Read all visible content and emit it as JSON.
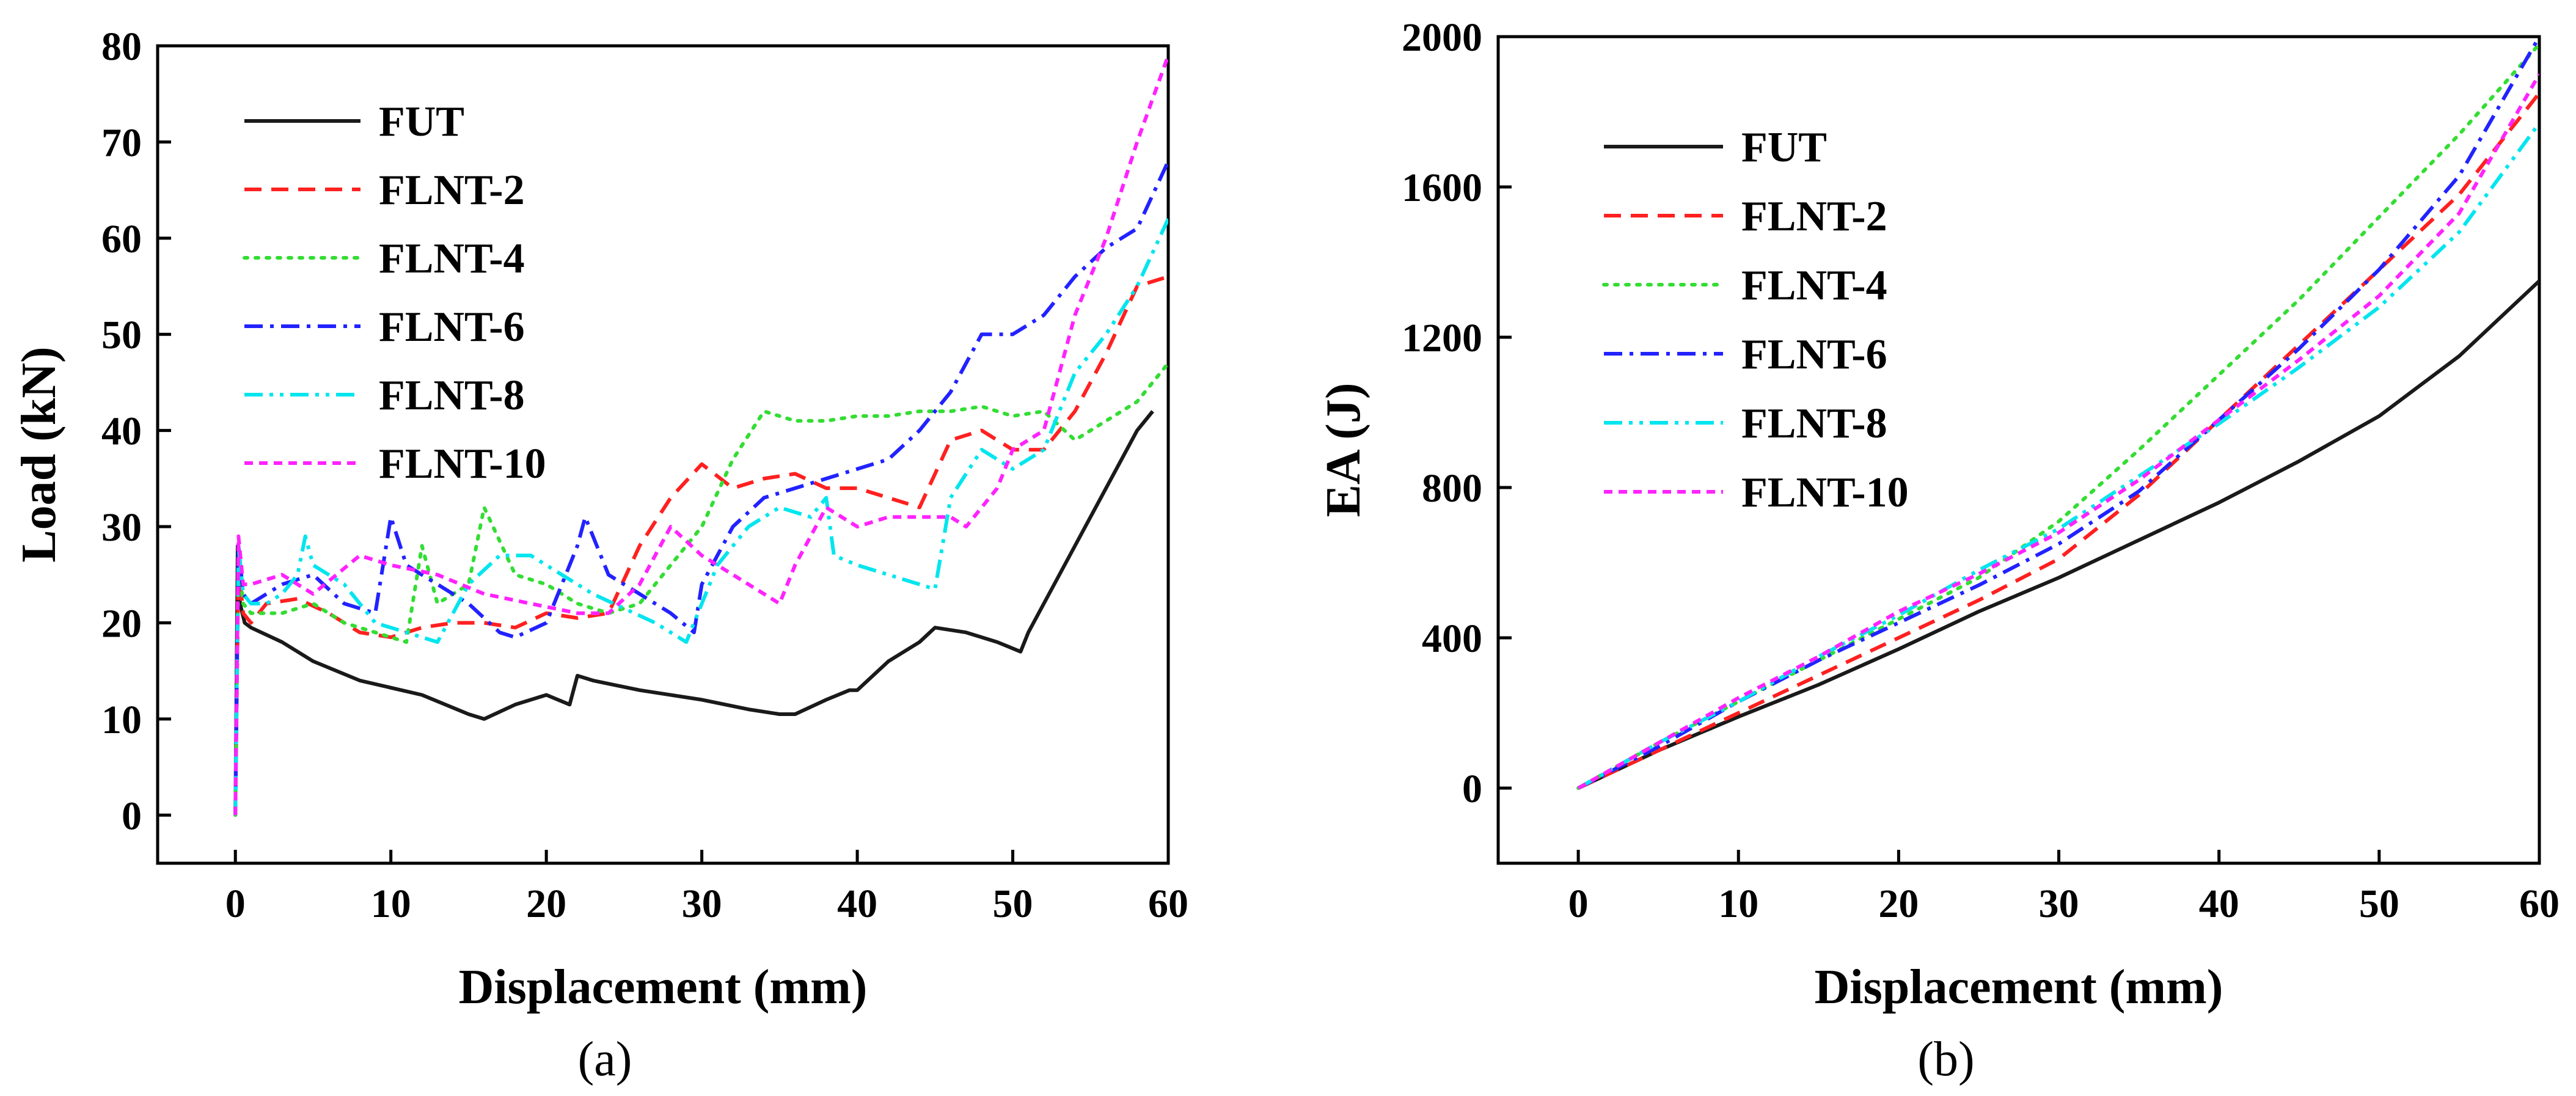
{
  "figure_labels": {
    "a": "(a)",
    "b": "(b)"
  },
  "colors": {
    "FUT": "#1a1a1a",
    "FLNT-2": "#ff2020",
    "FLNT-4": "#33dd33",
    "FLNT-6": "#2222ff",
    "FLNT-8": "#00e5ee",
    "FLNT-10": "#ff22ff"
  },
  "chart_data": [
    {
      "id": "a",
      "type": "line",
      "title": "",
      "xlabel": "Displacement (mm)",
      "ylabel": "Load (kN)",
      "xlim": [
        -5,
        60
      ],
      "ylim": [
        -5,
        80
      ],
      "xticks": [
        0,
        10,
        20,
        30,
        40,
        50,
        60
      ],
      "yticks": [
        0,
        10,
        20,
        30,
        40,
        50,
        60,
        70,
        80
      ],
      "legend_position": "top-left",
      "series": [
        {
          "name": "FUT",
          "style": "solid",
          "x": [
            0,
            0.15,
            0.3,
            0.6,
            1,
            3,
            5,
            8,
            12,
            15,
            16,
            18,
            20,
            21.5,
            22,
            23,
            26,
            30,
            33,
            35,
            36,
            38,
            39.5,
            40,
            42,
            44,
            45,
            47,
            49,
            50.5,
            51,
            52,
            54,
            56,
            58,
            59
          ],
          "y": [
            0,
            28,
            22,
            20,
            19.5,
            18,
            16,
            14,
            12.5,
            10.5,
            10,
            11.5,
            12.5,
            11.5,
            14.5,
            14,
            13,
            12,
            11,
            10.5,
            10.5,
            12,
            13,
            13,
            16,
            18,
            19.5,
            19,
            18,
            17,
            19,
            22,
            28,
            34,
            40,
            42
          ]
        },
        {
          "name": "FLNT-2",
          "style": "dashed",
          "x": [
            0,
            0.2,
            0.5,
            1,
            2,
            4,
            6,
            8,
            10,
            12,
            14,
            16,
            18,
            20,
            22,
            24,
            26,
            28,
            30,
            32,
            34,
            36,
            38,
            40,
            42,
            44,
            46,
            48,
            50,
            52,
            54,
            56,
            58,
            60
          ],
          "y": [
            0,
            26,
            21,
            20,
            22,
            22.5,
            21,
            19,
            18.5,
            19.5,
            20,
            20,
            19.5,
            21,
            20.5,
            21,
            28,
            33,
            36.5,
            34,
            35,
            35.5,
            34,
            34,
            33,
            32,
            39,
            40,
            38,
            38,
            42,
            48,
            55,
            56
          ]
        },
        {
          "name": "FLNT-4",
          "style": "dotted",
          "x": [
            0,
            0.2,
            0.5,
            1,
            3,
            5,
            7,
            9,
            11,
            12,
            13,
            14,
            15,
            16,
            18,
            20,
            22,
            24,
            26,
            28,
            30,
            32,
            34,
            36,
            38,
            40,
            42,
            44,
            46,
            48,
            50,
            52,
            54,
            56,
            58,
            60
          ],
          "y": [
            0,
            27,
            22,
            21,
            21,
            22,
            20,
            19,
            18,
            28,
            22,
            23,
            24,
            32,
            25,
            24,
            22,
            21,
            22,
            26,
            30,
            37,
            42,
            41,
            41,
            41.5,
            41.5,
            42,
            42,
            42.5,
            41.5,
            42,
            39,
            41,
            43,
            47
          ]
        },
        {
          "name": "FLNT-6",
          "style": "dashdot",
          "x": [
            0,
            0.2,
            0.5,
            1,
            3,
            5,
            7,
            9,
            10,
            11,
            13,
            15,
            17,
            18,
            20,
            22,
            22.5,
            24,
            26,
            28,
            29.5,
            30,
            32,
            34,
            36,
            38,
            40,
            42,
            44,
            46,
            48,
            50,
            52,
            54,
            56,
            58,
            60
          ],
          "y": [
            0,
            28,
            23,
            22,
            24,
            25,
            22,
            21,
            31,
            26,
            24,
            22,
            19,
            18.5,
            20,
            28,
            31,
            25,
            23,
            21,
            19,
            24,
            30,
            33,
            34,
            35,
            36,
            37,
            40,
            44,
            50,
            50,
            52,
            56,
            59,
            61,
            68
          ]
        },
        {
          "name": "FLNT-8",
          "style": "dashdotdot",
          "x": [
            0,
            0.2,
            0.5,
            1,
            2,
            3,
            4,
            4.5,
            5,
            7,
            9,
            11,
            13,
            15,
            17,
            19,
            21,
            23,
            25,
            27,
            29,
            31,
            33,
            35,
            37,
            38,
            38.5,
            40,
            42,
            44,
            45,
            46,
            48,
            50,
            52,
            54,
            56,
            58,
            60
          ],
          "y": [
            0,
            28,
            23,
            22,
            22,
            23,
            25,
            29,
            26,
            24,
            20,
            19,
            18,
            24,
            27,
            27,
            25,
            23,
            21.5,
            20,
            18,
            26,
            30,
            32,
            31,
            33,
            27,
            26,
            25,
            24,
            23.5,
            33,
            38,
            36,
            38,
            46,
            50,
            55,
            62
          ]
        },
        {
          "name": "FLNT-10",
          "style": "shortdash",
          "x": [
            0,
            0.2,
            0.5,
            1,
            3,
            5,
            8,
            10,
            13,
            16,
            19,
            22,
            24,
            26,
            28,
            30,
            32,
            34,
            35,
            36,
            38,
            40,
            42,
            44,
            46,
            47,
            49,
            50,
            52,
            53,
            54,
            56,
            58,
            60
          ],
          "y": [
            0,
            29,
            24,
            24,
            25,
            23,
            27,
            26,
            25,
            23,
            22,
            21,
            21,
            24,
            30,
            27,
            25,
            23,
            22,
            26,
            32,
            30,
            31,
            31,
            31,
            30,
            34,
            38,
            40,
            46,
            52,
            60,
            70,
            79
          ]
        }
      ]
    },
    {
      "id": "b",
      "type": "line",
      "title": "",
      "xlabel": "Displacement (mm)",
      "ylabel": "EA (J)",
      "xlim": [
        -5,
        60
      ],
      "ylim": [
        -200,
        2000
      ],
      "xticks": [
        0,
        10,
        20,
        30,
        40,
        50,
        60
      ],
      "yticks": [
        0,
        400,
        800,
        1200,
        1600,
        2000
      ],
      "legend_position": "top-left",
      "series": [
        {
          "name": "FUT",
          "style": "solid",
          "x": [
            0,
            5,
            10,
            15,
            20,
            25,
            30,
            35,
            40,
            45,
            50,
            55,
            60
          ],
          "y": [
            0,
            100,
            190,
            275,
            370,
            470,
            560,
            660,
            760,
            870,
            990,
            1150,
            1350
          ]
        },
        {
          "name": "FLNT-2",
          "style": "dashed",
          "x": [
            0,
            5,
            10,
            15,
            20,
            25,
            30,
            35,
            40,
            45,
            50,
            55,
            60
          ],
          "y": [
            0,
            100,
            200,
            300,
            400,
            500,
            610,
            780,
            980,
            1180,
            1380,
            1580,
            1850
          ]
        },
        {
          "name": "FLNT-4",
          "style": "dotted",
          "x": [
            0,
            5,
            10,
            15,
            20,
            25,
            30,
            35,
            40,
            45,
            50,
            55,
            60
          ],
          "y": [
            0,
            120,
            230,
            340,
            450,
            560,
            710,
            900,
            1100,
            1300,
            1520,
            1740,
            1980
          ]
        },
        {
          "name": "FLNT-6",
          "style": "dashdot",
          "x": [
            0,
            5,
            10,
            15,
            20,
            25,
            30,
            35,
            40,
            45,
            50,
            55,
            60
          ],
          "y": [
            0,
            110,
            230,
            340,
            440,
            540,
            650,
            790,
            980,
            1170,
            1380,
            1630,
            2000
          ]
        },
        {
          "name": "FLNT-8",
          "style": "dashdotdot",
          "x": [
            0,
            5,
            10,
            15,
            20,
            25,
            30,
            35,
            40,
            45,
            50,
            55,
            60
          ],
          "y": [
            0,
            120,
            230,
            350,
            460,
            580,
            690,
            830,
            970,
            1120,
            1280,
            1480,
            1770
          ]
        },
        {
          "name": "FLNT-10",
          "style": "shortdash",
          "x": [
            0,
            5,
            10,
            15,
            20,
            25,
            30,
            35,
            40,
            45,
            50,
            55,
            60
          ],
          "y": [
            0,
            120,
            240,
            350,
            470,
            570,
            680,
            820,
            980,
            1140,
            1310,
            1530,
            1900
          ]
        }
      ]
    }
  ]
}
